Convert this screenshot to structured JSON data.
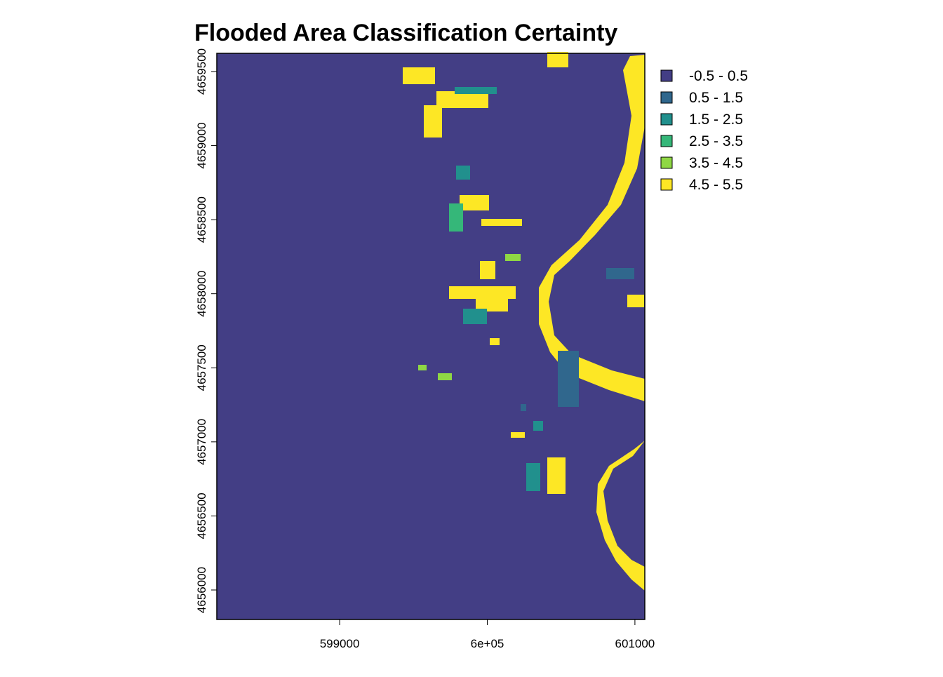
{
  "chart_data": {
    "type": "raster",
    "title": "Flooded Area Classification Certainty",
    "xlim": [
      598168,
      601067
    ],
    "ylim": [
      4655801,
      4659623
    ],
    "xticks": [
      599000,
      {
        "value": 600000,
        "label": "6e+05"
      },
      601000
    ],
    "yticks": [
      4656000,
      4656500,
      4657000,
      4657500,
      4658000,
      4658500,
      4659000,
      4659500
    ],
    "classes": [
      {
        "label": "-0.5 - 0.5",
        "color": "#433e85"
      },
      {
        "label": "0.5 - 1.5",
        "color": "#30678d"
      },
      {
        "label": "1.5 - 2.5",
        "color": "#21908d"
      },
      {
        "label": "2.5 - 3.5",
        "color": "#35b779"
      },
      {
        "label": "3.5 - 4.5",
        "color": "#8fd744"
      },
      {
        "label": "4.5 - 5.5",
        "color": "#fde725"
      }
    ]
  }
}
